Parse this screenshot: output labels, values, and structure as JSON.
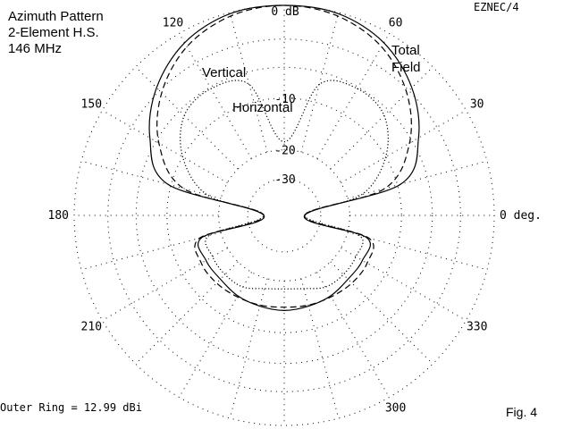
{
  "header": {
    "title_lines": [
      "Azimuth Pattern",
      "2-Element H.S.",
      "146 MHz"
    ],
    "program": "EZNEC/4"
  },
  "footer": {
    "outer_ring": "Outer Ring = 12.99 dBi",
    "figure": "Fig. 4"
  },
  "chart_data": {
    "type": "polar",
    "angular_labels": [
      {
        "angle": 0,
        "text": "0 deg."
      },
      {
        "angle": 30,
        "text": "30"
      },
      {
        "angle": 60,
        "text": "60"
      },
      {
        "angle": 120,
        "text": "120"
      },
      {
        "angle": 150,
        "text": "150"
      },
      {
        "angle": 180,
        "text": "180"
      },
      {
        "angle": 210,
        "text": "210"
      },
      {
        "angle": 300,
        "text": "300"
      },
      {
        "angle": 330,
        "text": "330"
      }
    ],
    "radial_labels": [
      {
        "db": 0,
        "text": "0 dB"
      },
      {
        "db": -10,
        "text": "-10"
      },
      {
        "db": -20,
        "text": "-20"
      },
      {
        "db": -30,
        "text": "-30"
      }
    ],
    "rings_db": [
      0,
      -3,
      -6,
      -10,
      -20,
      -30
    ],
    "outer_ring_dbi": 12.99,
    "series": [
      {
        "name": "Total Field",
        "style": "dashed",
        "angles": [
          0,
          15,
          30,
          45,
          60,
          75,
          90,
          105,
          120,
          135,
          150,
          165,
          180,
          195,
          210,
          225,
          240,
          255,
          270,
          285,
          300,
          315,
          330,
          345
        ],
        "db": [
          -40,
          -12,
          -6.4,
          -3.3,
          -1.3,
          -0.3,
          0,
          -0.3,
          -1.3,
          -3.3,
          -6.4,
          -12,
          -40,
          -15,
          -13.5,
          -13.5,
          -13.8,
          -14,
          -14.2,
          -14,
          -13.8,
          -13.5,
          -13.5,
          -15
        ]
      },
      {
        "name": "Vertical",
        "style": "solid",
        "angles": [
          0,
          15,
          30,
          45,
          60,
          75,
          90,
          105,
          120,
          135,
          150,
          165,
          180,
          195,
          210,
          225,
          240,
          255,
          270,
          285,
          300,
          315,
          330,
          345
        ],
        "db": [
          -40,
          -9.5,
          -5.2,
          -2.6,
          -0.9,
          -0.1,
          0,
          -0.1,
          -0.9,
          -2.6,
          -5.2,
          -9.5,
          -40,
          -15.5,
          -14.5,
          -14.5,
          -14,
          -13.8,
          -13.6,
          -13.8,
          -14,
          -14.5,
          -14.5,
          -15.5
        ]
      },
      {
        "name": "Horizontal",
        "style": "dotted",
        "angles": [
          0,
          15,
          30,
          45,
          60,
          75,
          90,
          105,
          120,
          135,
          150,
          165,
          180,
          195,
          210,
          225,
          240,
          255,
          270,
          285,
          300,
          315,
          330,
          345
        ],
        "db": [
          -40,
          -16.5,
          -10,
          -6.8,
          -6.2,
          -7.5,
          -18,
          -7.5,
          -6.2,
          -6.8,
          -10,
          -16.5,
          -40,
          -17,
          -16,
          -15.8,
          -16,
          -17.5,
          -18,
          -17.5,
          -16,
          -15.8,
          -16,
          -17
        ]
      }
    ],
    "series_labels": [
      "Vertical",
      "Horizontal",
      "Total",
      "Field"
    ],
    "grid": true,
    "grid_style": "dotted"
  }
}
